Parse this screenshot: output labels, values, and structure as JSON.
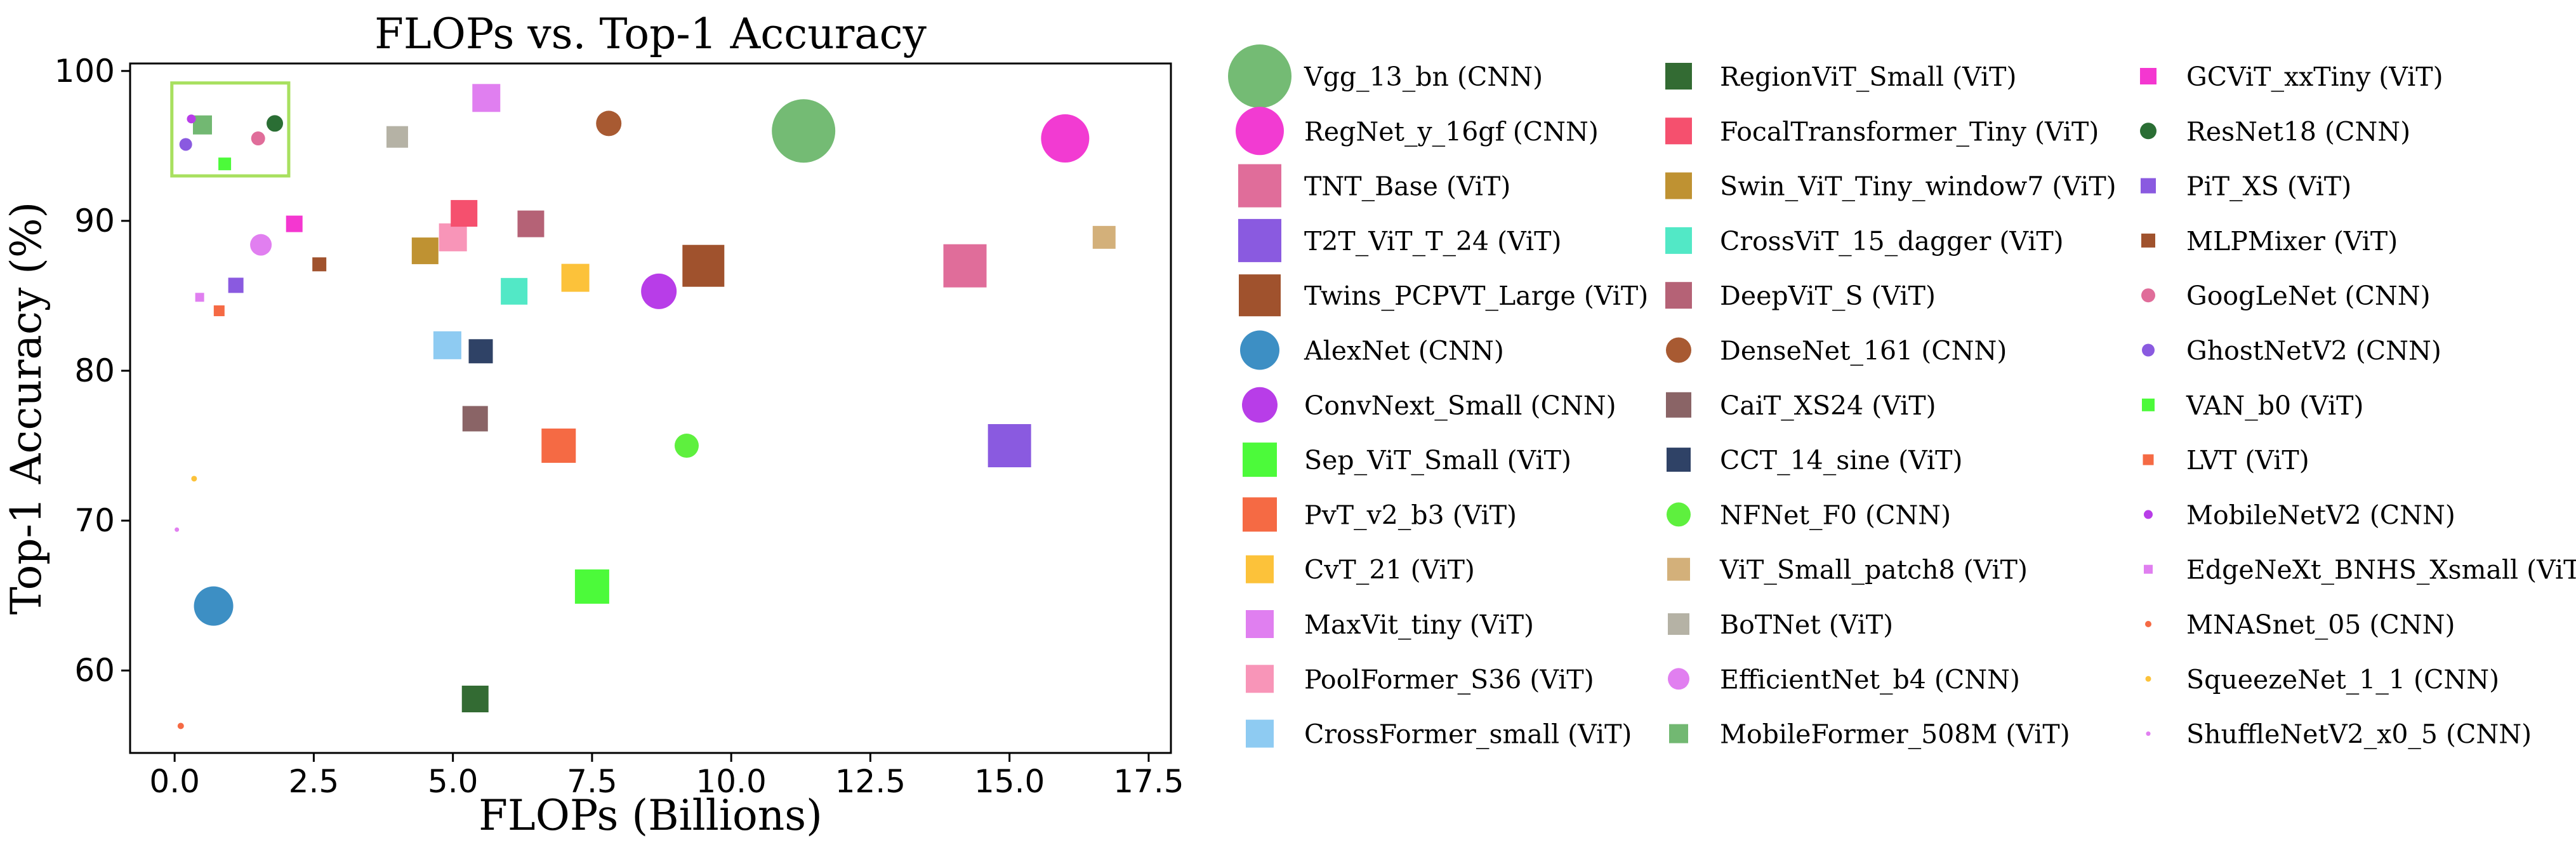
{
  "chart_data": {
    "type": "scatter",
    "title": "FLOPs vs. Top-1 Accuracy",
    "xlabel": "FLOPs (Billions)",
    "ylabel": "Top-1 Accuracy (%)",
    "xlim": [
      -0.8,
      17.9
    ],
    "ylim": [
      54.5,
      100.5
    ],
    "xticks": [
      0.0,
      2.5,
      5.0,
      7.5,
      10.0,
      12.5,
      15.0,
      17.5
    ],
    "xtick_labels": [
      "0.0",
      "2.5",
      "5.0",
      "7.5",
      "10.0",
      "12.5",
      "15.0",
      "17.5"
    ],
    "yticks": [
      60,
      70,
      80,
      90,
      100
    ],
    "ytick_labels": [
      "60",
      "70",
      "80",
      "90",
      "100"
    ],
    "grid": false,
    "legend_position": "right, 3 columns",
    "highlight_box": {
      "x": [
        -0.05,
        2.05
      ],
      "y": [
        93.0,
        99.2
      ],
      "color": "#a8e05f"
    },
    "series": [
      {
        "name": "Vgg_13_bn (CNN)",
        "arch": "CNN",
        "x": 11.3,
        "y": 96.0,
        "color": "#74bb74",
        "marker": "circle",
        "size": 100
      },
      {
        "name": "RegNet_y_16gf (CNN)",
        "arch": "CNN",
        "x": 16.0,
        "y": 95.5,
        "color": "#f23bd2",
        "marker": "circle",
        "size": 76
      },
      {
        "name": "TNT_Base (ViT)",
        "arch": "ViT",
        "x": 14.2,
        "y": 87.0,
        "color": "#e06d9a",
        "marker": "square",
        "size": 68
      },
      {
        "name": "T2T_ViT_T_24 (ViT)",
        "arch": "ViT",
        "x": 15.0,
        "y": 75.0,
        "color": "#8a5ae0",
        "marker": "square",
        "size": 68
      },
      {
        "name": "Twins_PCPVT_Large (ViT)",
        "arch": "ViT",
        "x": 9.5,
        "y": 87.0,
        "color": "#a0522d",
        "marker": "square",
        "size": 66
      },
      {
        "name": "AlexNet (CNN)",
        "arch": "CNN",
        "x": 0.7,
        "y": 64.3,
        "color": "#3d8fc4",
        "marker": "circle",
        "size": 62
      },
      {
        "name": "ConvNext_Small (CNN)",
        "arch": "CNN",
        "x": 8.7,
        "y": 85.3,
        "color": "#b83de8",
        "marker": "circle",
        "size": 56
      },
      {
        "name": "Sep_ViT_Small (ViT)",
        "arch": "ViT",
        "x": 7.5,
        "y": 65.6,
        "color": "#4cfa3a",
        "marker": "square",
        "size": 54
      },
      {
        "name": "PvT_v2_b3 (ViT)",
        "arch": "ViT",
        "x": 6.9,
        "y": 75.0,
        "color": "#f56a44",
        "marker": "square",
        "size": 54
      },
      {
        "name": "CvT_21 (ViT)",
        "arch": "ViT",
        "x": 7.2,
        "y": 86.2,
        "color": "#fcc23a",
        "marker": "square",
        "size": 44
      },
      {
        "name": "MaxVit_tiny (ViT)",
        "arch": "ViT",
        "x": 5.6,
        "y": 98.2,
        "color": "#e07ff0",
        "marker": "square",
        "size": 44
      },
      {
        "name": "PoolFormer_S36 (ViT)",
        "arch": "ViT",
        "x": 5.0,
        "y": 88.9,
        "color": "#f895b8",
        "marker": "square",
        "size": 44
      },
      {
        "name": "CrossFormer_small (ViT)",
        "arch": "ViT",
        "x": 4.9,
        "y": 81.7,
        "color": "#8ecbf2",
        "marker": "square",
        "size": 44
      },
      {
        "name": "RegionViT_Small (ViT)",
        "arch": "ViT",
        "x": 5.4,
        "y": 58.1,
        "color": "#336b33",
        "marker": "square",
        "size": 42
      },
      {
        "name": "FocalTransformer_Tiny (ViT)",
        "arch": "ViT",
        "x": 5.2,
        "y": 90.5,
        "color": "#f5506e",
        "marker": "square",
        "size": 42
      },
      {
        "name": "Swin_ViT_Tiny_window7 (ViT)",
        "arch": "ViT",
        "x": 4.5,
        "y": 88.0,
        "color": "#bf9232",
        "marker": "square",
        "size": 42
      },
      {
        "name": "CrossViT_15_dagger (ViT)",
        "arch": "ViT",
        "x": 6.1,
        "y": 85.3,
        "color": "#52e8c6",
        "marker": "square",
        "size": 42
      },
      {
        "name": "DeepViT_S (ViT)",
        "arch": "ViT",
        "x": 6.4,
        "y": 89.8,
        "color": "#b56276",
        "marker": "square",
        "size": 42
      },
      {
        "name": "DenseNet_161 (CNN)",
        "arch": "CNN",
        "x": 7.8,
        "y": 96.5,
        "color": "#a85a32",
        "marker": "circle",
        "size": 40
      },
      {
        "name": "CaiT_XS24 (ViT)",
        "arch": "ViT",
        "x": 5.4,
        "y": 76.8,
        "color": "#8a6466",
        "marker": "square",
        "size": 40
      },
      {
        "name": "CCT_14_sine (ViT)",
        "arch": "ViT",
        "x": 5.5,
        "y": 81.3,
        "color": "#2f4266",
        "marker": "square",
        "size": 38
      },
      {
        "name": "NFNet_F0 (CNN)",
        "arch": "CNN",
        "x": 9.2,
        "y": 75.0,
        "color": "#5ef03e",
        "marker": "circle",
        "size": 38
      },
      {
        "name": "ViT_Small_patch8 (ViT)",
        "arch": "ViT",
        "x": 16.7,
        "y": 88.9,
        "color": "#d3b07a",
        "marker": "square",
        "size": 36
      },
      {
        "name": "BoTNet (ViT)",
        "arch": "ViT",
        "x": 4.0,
        "y": 95.6,
        "color": "#b5b2a5",
        "marker": "square",
        "size": 34
      },
      {
        "name": "EfficientNet_b4 (CNN)",
        "arch": "CNN",
        "x": 1.55,
        "y": 88.4,
        "color": "#e17ff0",
        "marker": "circle",
        "size": 34
      },
      {
        "name": "MobileFormer_508M (ViT)",
        "arch": "ViT",
        "x": 0.5,
        "y": 96.4,
        "color": "#72b872",
        "marker": "square",
        "size": 30
      },
      {
        "name": "GCViT_xxTiny (ViT)",
        "arch": "ViT",
        "x": 2.15,
        "y": 89.8,
        "color": "#f437d0",
        "marker": "square",
        "size": 26
      },
      {
        "name": "ResNet18 (CNN)",
        "arch": "CNN",
        "x": 1.8,
        "y": 96.5,
        "color": "#2a6e34",
        "marker": "circle",
        "size": 26
      },
      {
        "name": "PiT_XS (ViT)",
        "arch": "ViT",
        "x": 1.1,
        "y": 85.7,
        "color": "#8a5ae0",
        "marker": "square",
        "size": 24
      },
      {
        "name": "MLPMixer (ViT)",
        "arch": "ViT",
        "x": 2.6,
        "y": 87.1,
        "color": "#a0522d",
        "marker": "square",
        "size": 22
      },
      {
        "name": "GoogLeNet (CNN)",
        "arch": "CNN",
        "x": 1.5,
        "y": 95.5,
        "color": "#e06d9a",
        "marker": "circle",
        "size": 22
      },
      {
        "name": "GhostNetV2 (CNN)",
        "arch": "CNN",
        "x": 0.2,
        "y": 95.1,
        "color": "#8a5ae0",
        "marker": "circle",
        "size": 20
      },
      {
        "name": "VAN_b0 (ViT)",
        "arch": "ViT",
        "x": 0.9,
        "y": 93.8,
        "color": "#4cfa3a",
        "marker": "square",
        "size": 20
      },
      {
        "name": "LVT (ViT)",
        "arch": "ViT",
        "x": 0.8,
        "y": 84.0,
        "color": "#f56a44",
        "marker": "square",
        "size": 17
      },
      {
        "name": "MobileNetV2 (CNN)",
        "arch": "CNN",
        "x": 0.3,
        "y": 96.8,
        "color": "#b83de8",
        "marker": "circle",
        "size": 14
      },
      {
        "name": "EdgeNeXt_BNHS_Xsmall (ViT)",
        "arch": "ViT",
        "x": 0.45,
        "y": 84.9,
        "color": "#e07ff0",
        "marker": "square",
        "size": 14
      },
      {
        "name": "MNASnet_05 (CNN)",
        "arch": "CNN",
        "x": 0.11,
        "y": 56.3,
        "color": "#f56a44",
        "marker": "circle",
        "size": 10
      },
      {
        "name": "SqueezeNet_1_1 (CNN)",
        "arch": "CNN",
        "x": 0.35,
        "y": 72.8,
        "color": "#fcc23a",
        "marker": "circle",
        "size": 9
      },
      {
        "name": "ShuffleNetV2_x0_5 (CNN)",
        "arch": "CNN",
        "x": 0.04,
        "y": 69.4,
        "color": "#e17ff0",
        "marker": "circle",
        "size": 7
      }
    ]
  }
}
